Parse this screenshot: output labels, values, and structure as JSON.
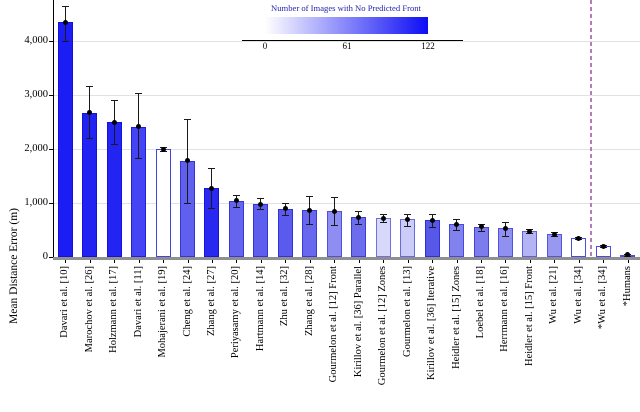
{
  "chart_data": {
    "type": "bar",
    "title": "",
    "xlabel": "",
    "ylabel": "Mean Distance Error (m)",
    "ylim": [
      0,
      4760
    ],
    "grid": true,
    "yticks": [
      {
        "value": 0,
        "label": "0"
      },
      {
        "value": 1000,
        "label": "1,000"
      },
      {
        "value": 2000,
        "label": "2,000"
      },
      {
        "value": 3000,
        "label": "3,000"
      },
      {
        "value": 4000,
        "label": "4,000"
      }
    ],
    "colorbar": {
      "title": "Number of Images with No Predicted Front",
      "title_color": "#2222b0",
      "min": 0,
      "mid": 61,
      "max": 122,
      "ticks": [
        "0",
        "61",
        "122"
      ],
      "min_color": "#ffffff",
      "max_color": "#0d0df5"
    },
    "separator_line": {
      "style": "dashed",
      "color": "#b97ab9",
      "between_labels": [
        "Wu et al. [34]",
        "*Wu et al. [34]"
      ],
      "after_bar_index": 21
    },
    "bars": [
      {
        "label": "Davari et al. [10]",
        "value": 4350,
        "err_low": 4000,
        "err_high": 4650,
        "fill": "#1c1cf5",
        "edge": "#1212d8"
      },
      {
        "label": "Marochov et al. [26]",
        "value": 2670,
        "err_low": 2200,
        "err_high": 3160,
        "fill": "#2222f2",
        "edge": "#1212d8"
      },
      {
        "label": "Holzmann et al. [17]",
        "value": 2500,
        "err_low": 2090,
        "err_high": 2910,
        "fill": "#2424f2",
        "edge": "#1212d8"
      },
      {
        "label": "Davari et al. [11]",
        "value": 2410,
        "err_low": 1830,
        "err_high": 3030,
        "fill": "#4444f4",
        "edge": "#2020d8"
      },
      {
        "label": "Mohajerani et al. [19]",
        "value": 2000,
        "err_low": 1960,
        "err_high": 2040,
        "fill": "#ffffff",
        "edge": "#4343dd"
      },
      {
        "label": "Cheng et al. [24]",
        "value": 1780,
        "err_low": 1000,
        "err_high": 2550,
        "fill": "#6060ee",
        "edge": "#3535d8"
      },
      {
        "label": "Zhang et al. [27]",
        "value": 1270,
        "err_low": 900,
        "err_high": 1650,
        "fill": "#2828f0",
        "edge": "#1515d5"
      },
      {
        "label": "Periyasamy et al. [20]",
        "value": 1040,
        "err_low": 930,
        "err_high": 1150,
        "fill": "#6464ef",
        "edge": "#3838d8"
      },
      {
        "label": "Hartmann et al. [14]",
        "value": 980,
        "err_low": 890,
        "err_high": 1090,
        "fill": "#5e5eee",
        "edge": "#3434d6"
      },
      {
        "label": "Zhu et al. [32]",
        "value": 890,
        "err_low": 780,
        "err_high": 1000,
        "fill": "#5a5aee",
        "edge": "#3232d6"
      },
      {
        "label": "Zhang et al. [28]",
        "value": 870,
        "err_low": 620,
        "err_high": 1130,
        "fill": "#6868ee",
        "edge": "#3a3ad8"
      },
      {
        "label": "Gourmelon et al. [12] Front",
        "value": 850,
        "err_low": 600,
        "err_high": 1120,
        "fill": "#8e8ef2",
        "edge": "#5050dd"
      },
      {
        "label": "Kirillov et al. [36] Parallel",
        "value": 735,
        "err_low": 610,
        "err_high": 860,
        "fill": "#6c6cec",
        "edge": "#3c3cd8"
      },
      {
        "label": "Gourmelon et al. [12] Zones",
        "value": 715,
        "err_low": 640,
        "err_high": 790,
        "fill": "#d8d8fa",
        "edge": "#7070e0"
      },
      {
        "label": "Gourmelon et al. [13]",
        "value": 700,
        "err_low": 570,
        "err_high": 790,
        "fill": "#ccccf8",
        "edge": "#6868e0"
      },
      {
        "label": "Kirillov et al. [36] Iterative",
        "value": 685,
        "err_low": 550,
        "err_high": 790,
        "fill": "#5858e8",
        "edge": "#3030d0"
      },
      {
        "label": "Heidler et al. [15] Zones",
        "value": 610,
        "err_low": 500,
        "err_high": 700,
        "fill": "#8282ee",
        "edge": "#4848da"
      },
      {
        "label": "Loebel et al. [18]",
        "value": 560,
        "err_low": 480,
        "err_high": 615,
        "fill": "#7c7cec",
        "edge": "#4444d8"
      },
      {
        "label": "Herrmann et al. [16]",
        "value": 530,
        "err_low": 380,
        "err_high": 655,
        "fill": "#9090f0",
        "edge": "#5252dc"
      },
      {
        "label": "Heidler et al. [15] Front",
        "value": 480,
        "err_low": 440,
        "err_high": 520,
        "fill": "#b4b4f5",
        "edge": "#6060de"
      },
      {
        "label": "Wu et al. [21]",
        "value": 425,
        "err_low": 395,
        "err_high": 455,
        "fill": "#9898f0",
        "edge": "#5555dc"
      },
      {
        "label": "Wu et al. [34]",
        "value": 350,
        "err_low": 325,
        "err_high": 375,
        "fill": "#ffffff",
        "edge": "#4c4cdd"
      },
      {
        "label": "*Wu et al. [34]",
        "value": 200,
        "err_low": 180,
        "err_high": 220,
        "fill": "#ffffff",
        "edge": "#4c4cdd"
      },
      {
        "label": "*Humans",
        "value": 38,
        "err_low": 25,
        "err_high": 50,
        "fill": "#ffffff",
        "edge": "#4c4cdd"
      }
    ]
  }
}
